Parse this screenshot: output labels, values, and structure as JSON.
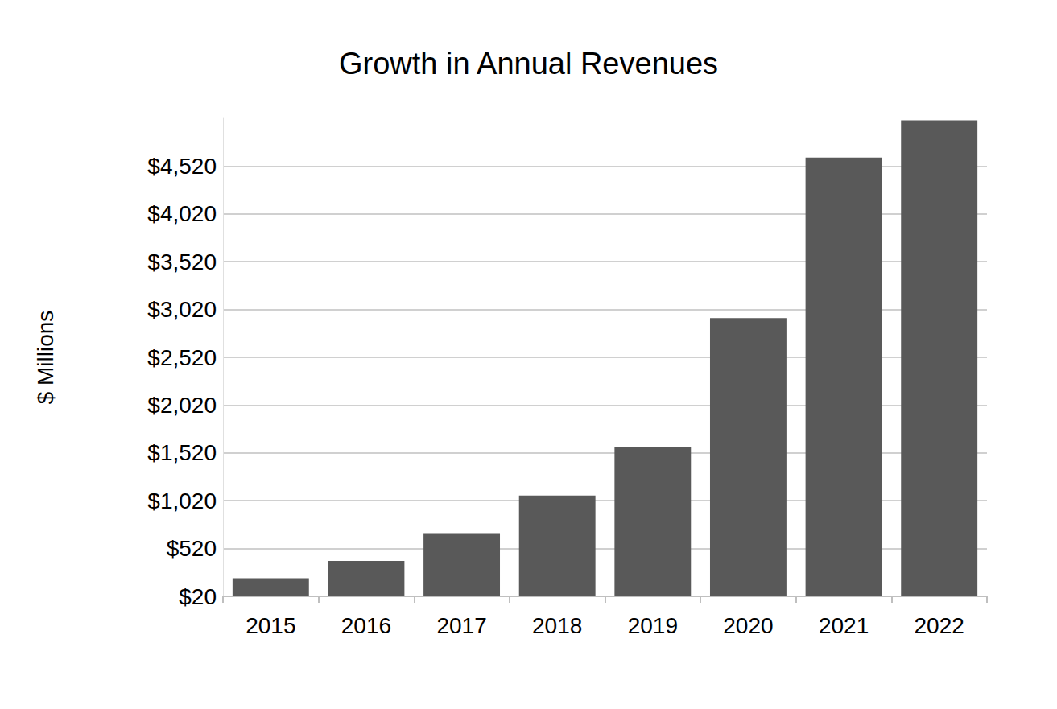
{
  "chart_data": {
    "type": "bar",
    "title": "Growth in Annual Revenues",
    "y_label": "$ Millions",
    "categories": [
      "2015",
      "2016",
      "2017",
      "2018",
      "2019",
      "2020",
      "2021",
      "2022"
    ],
    "values": [
      210,
      390,
      680,
      1075,
      1580,
      2930,
      4610,
      5000
    ],
    "color": "#595959",
    "ylim": [
      20,
      5020
    ],
    "yticks": [
      {
        "value": 20,
        "label": "$20"
      },
      {
        "value": 520,
        "label": "$520"
      },
      {
        "value": 1020,
        "label": "$1,020"
      },
      {
        "value": 1520,
        "label": "$1,520"
      },
      {
        "value": 2020,
        "label": "$2,020"
      },
      {
        "value": 2520,
        "label": "$2,520"
      },
      {
        "value": 3020,
        "label": "$3,020"
      },
      {
        "value": 3520,
        "label": "$3,520"
      },
      {
        "value": 4020,
        "label": "$4,020"
      },
      {
        "value": 4520,
        "label": "$4,520"
      }
    ],
    "grid": true
  }
}
